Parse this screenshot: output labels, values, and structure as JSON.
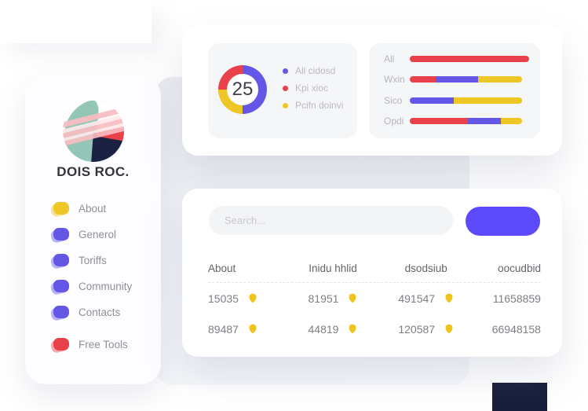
{
  "colors": {
    "purple": "#6557e6",
    "red": "#e8414a",
    "yellow": "#eec727",
    "button_purple": "#5b49fa",
    "navy": "#171d3a",
    "badge_gold": "#f0c41d",
    "logo_teal": "#93c6b7",
    "logo_pink": "#f8bcc0",
    "logo_navy": "#1a2143"
  },
  "sidebar": {
    "brand": "DOIS ROC.",
    "items": [
      {
        "label": "About",
        "color": "yellow"
      },
      {
        "label": "Generol",
        "color": "purple"
      },
      {
        "label": "Toriffs",
        "color": "purple"
      },
      {
        "label": "Community",
        "color": "purple"
      },
      {
        "label": "Contacts",
        "color": "purple"
      }
    ],
    "footer_item": {
      "label": "Free Tools",
      "color": "red"
    }
  },
  "chart_data": [
    {
      "type": "pie",
      "style": "donut",
      "center_label": "25",
      "slices": [
        {
          "label": "All cidosd",
          "color": "purple",
          "pct": 50
        },
        {
          "label": "Kpi xioc",
          "color": "red",
          "pct": 25
        },
        {
          "label": "Pcifn doinvi",
          "color": "yellow",
          "pct": 25
        }
      ],
      "ring_draw_order": [
        {
          "color": "purple",
          "pct": 50
        },
        {
          "color": "yellow",
          "pct": 25
        },
        {
          "color": "red",
          "pct": 25
        }
      ],
      "legend_position": "right"
    },
    {
      "type": "bar",
      "orientation": "horizontal",
      "stacked": true,
      "categories": [
        "All",
        "Wxin",
        "Sico",
        "Opdi"
      ],
      "rows": [
        {
          "label": "All",
          "track_pct": 100,
          "segments": [
            {
              "color": "red",
              "pct": 100
            }
          ]
        },
        {
          "label": "Wxin",
          "track_pct": 94,
          "segments": [
            {
              "color": "red",
              "pct": 23
            },
            {
              "color": "purple",
              "pct": 38
            },
            {
              "color": "yellow",
              "pct": 39
            }
          ]
        },
        {
          "label": "Sico",
          "track_pct": 94,
          "segments": [
            {
              "color": "purple",
              "pct": 39
            },
            {
              "color": "yellow",
              "pct": 61
            }
          ]
        },
        {
          "label": "Opdi",
          "track_pct": 94,
          "segments": [
            {
              "color": "red",
              "pct": 52
            },
            {
              "color": "purple",
              "pct": 29
            },
            {
              "color": "yellow",
              "pct": 19
            }
          ]
        }
      ]
    }
  ],
  "search": {
    "placeholder": "Search..."
  },
  "table": {
    "headers": [
      "About",
      "Inidu hhlid",
      "dsodsiub",
      "oocudbid"
    ],
    "rows": [
      [
        {
          "value": "15035",
          "badge": true
        },
        {
          "value": "81951",
          "badge": true
        },
        {
          "value": "491547",
          "badge": true
        },
        {
          "value": "11658859",
          "badge": false
        }
      ],
      [
        {
          "value": "89487",
          "badge": true
        },
        {
          "value": "44819",
          "badge": true
        },
        {
          "value": "120587",
          "badge": true
        },
        {
          "value": "66948158",
          "badge": false
        }
      ]
    ]
  }
}
